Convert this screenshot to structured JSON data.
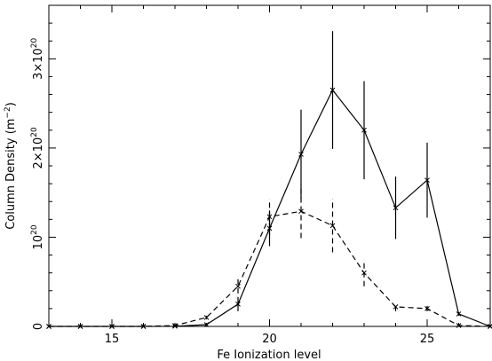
{
  "chart_data": {
    "type": "line",
    "xlabel": "Fe Ionization level",
    "ylabel_base": "Column Density (m",
    "ylabel_exp": "−2",
    "ylabel_close": ")",
    "xlim": [
      13,
      27
    ],
    "ylim": [
      0,
      3.6e+20
    ],
    "x_ticks": [
      15,
      20,
      25
    ],
    "y_ticks": [
      {
        "value": 0,
        "mantissa": "0",
        "exp": ""
      },
      {
        "value": 1e+20,
        "mantissa": "10",
        "exp": "20"
      },
      {
        "value": 2e+20,
        "mantissa": "2×10",
        "exp": "20"
      },
      {
        "value": 3e+20,
        "mantissa": "3×10",
        "exp": "20"
      }
    ],
    "series": [
      {
        "style": "solid",
        "x": [
          13,
          14,
          15,
          16,
          17,
          18,
          19,
          20,
          21,
          22,
          23,
          24,
          25,
          26,
          27
        ],
        "y": [
          0,
          0,
          0,
          0,
          2e+17,
          2e+18,
          2.5e+19,
          1.1e+20,
          1.93e+20,
          2.65e+20,
          2.2e+20,
          1.33e+20,
          1.64e+20,
          1.4e+19,
          0
        ],
        "err": [
          0,
          0,
          0,
          0,
          0,
          1e+18,
          8e+18,
          2e+19,
          5e+19,
          6.6e+19,
          5.5e+19,
          3.5e+19,
          4.2e+19,
          2e+18,
          0
        ]
      },
      {
        "style": "dashed",
        "x": [
          13,
          14,
          15,
          16,
          17,
          18,
          19,
          20,
          21,
          22,
          23,
          24,
          25,
          26,
          27
        ],
        "y": [
          0,
          0,
          0,
          0,
          1e+18,
          1e+19,
          4.5e+19,
          1.23e+20,
          1.29e+20,
          1.13e+20,
          6e+19,
          2.2e+19,
          2e+19,
          1e+18,
          0
        ],
        "err": [
          0,
          0,
          0,
          0,
          0,
          2e+18,
          8e+18,
          2e+19,
          3e+19,
          3e+19,
          1.5e+19,
          5e+18,
          3e+18,
          0,
          0
        ]
      }
    ]
  }
}
